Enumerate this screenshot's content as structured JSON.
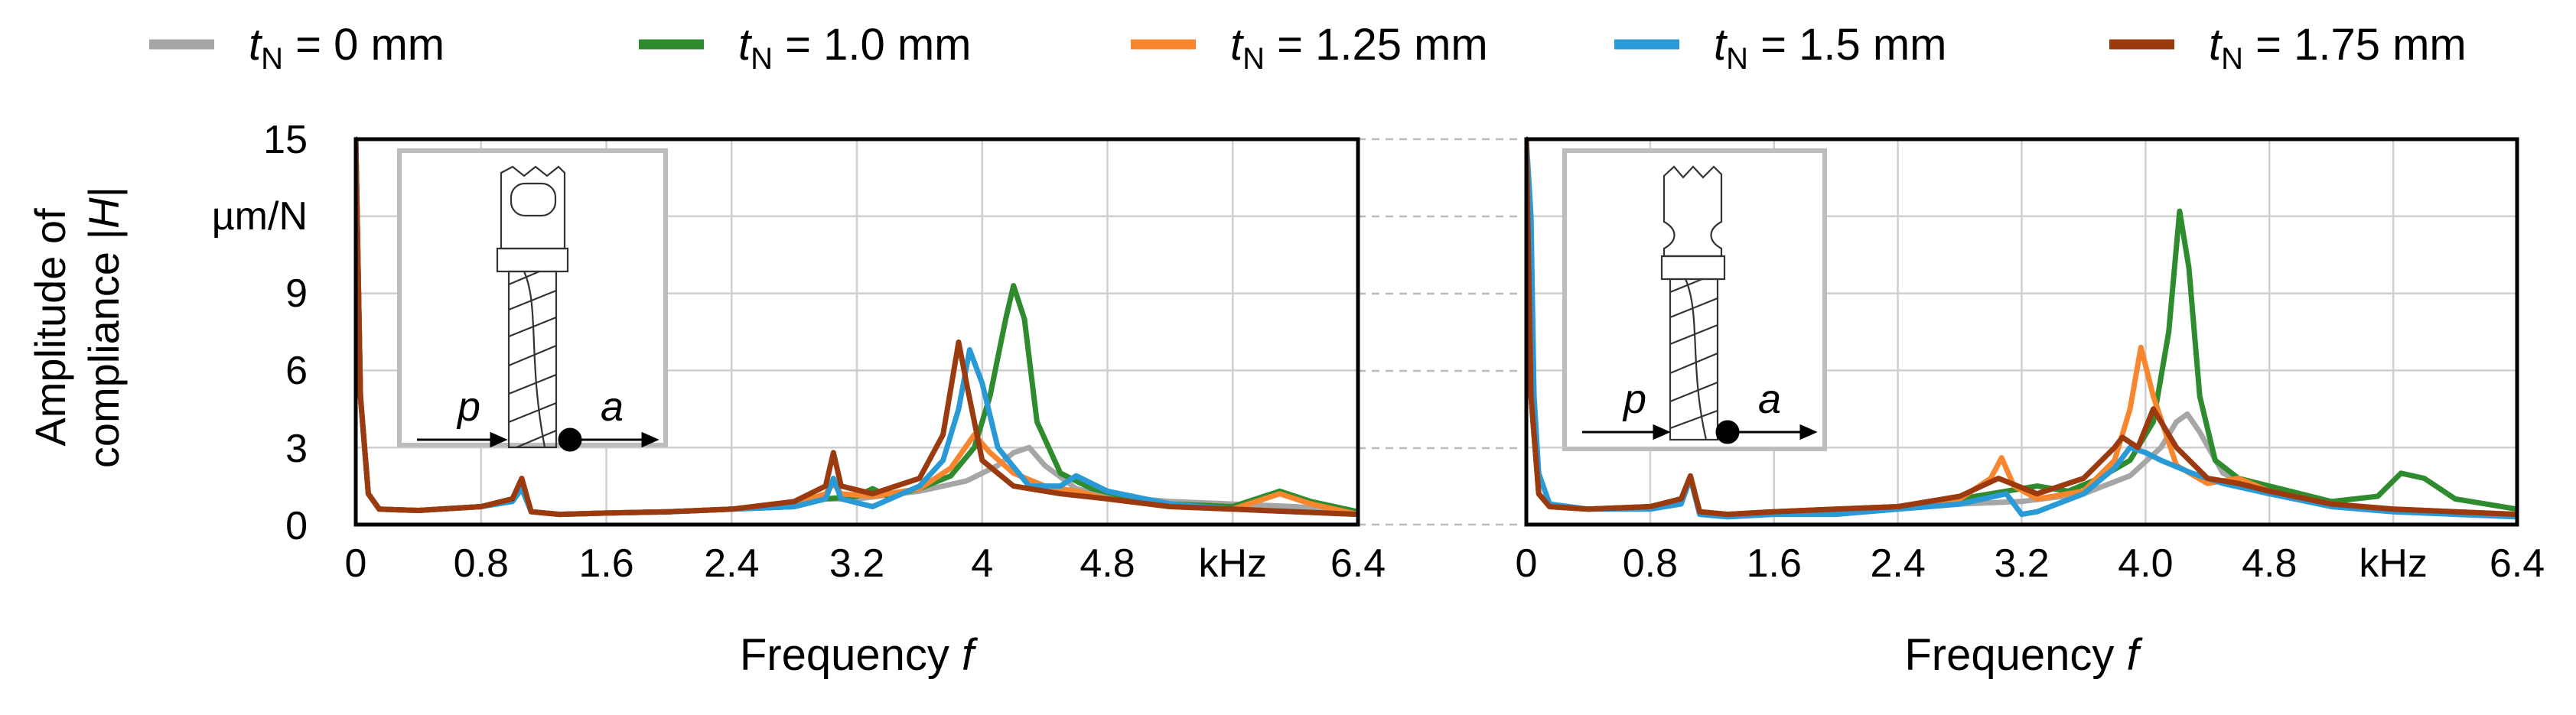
{
  "legend": {
    "items": [
      {
        "var": "t",
        "sub": "N",
        "rest": " = 0 mm",
        "color": "#a6a6a6"
      },
      {
        "var": "t",
        "sub": "N",
        "rest": " = 1.0 mm",
        "color": "#2e8b2e"
      },
      {
        "var": "t",
        "sub": "N",
        "rest": " = 1.25 mm",
        "color": "#f7862e"
      },
      {
        "var": "t",
        "sub": "N",
        "rest": " = 1.5 mm",
        "color": "#2a9ad6"
      },
      {
        "var": "t",
        "sub": "N",
        "rest": " = 1.75 mm",
        "color": "#9b3a0f"
      }
    ]
  },
  "y_axis": {
    "label_line1": "Amplitude of",
    "label_line2_prefix": "compliance |",
    "label_line2_var": "H",
    "label_line2_suffix": "|",
    "unit": "µm/N",
    "ticks": [
      "15",
      "",
      "9",
      "6",
      "3",
      "0"
    ]
  },
  "inset": {
    "left_labels": {
      "p": "p",
      "a": "a"
    },
    "right_labels": {
      "p": "p",
      "a": "a"
    }
  },
  "chart_data": [
    {
      "type": "line",
      "panel": "left",
      "xlabel_text": "Frequency ",
      "xlabel_var": "f",
      "x_unit": "kHz",
      "x_ticks": [
        "0",
        "0.8",
        "1.6",
        "2.4",
        "3.2",
        "4",
        "4.8",
        "",
        "6.4"
      ],
      "xlim": [
        0,
        6.4
      ],
      "ylim": [
        0,
        15
      ],
      "grid": true,
      "legend": "top",
      "series": [
        {
          "name": "tN = 0 mm",
          "color": "#a6a6a6",
          "x": [
            0,
            0.03,
            0.08,
            0.15,
            0.4,
            0.8,
            1.0,
            1.06,
            1.12,
            1.3,
            1.6,
            2.0,
            2.4,
            2.8,
            3.0,
            3.2,
            3.6,
            3.9,
            4.1,
            4.2,
            4.3,
            4.4,
            4.6,
            4.8,
            5.2,
            5.6,
            6.0,
            6.4
          ],
          "y": [
            15,
            5,
            1.2,
            0.6,
            0.55,
            0.7,
            0.9,
            1.5,
            0.5,
            0.4,
            0.45,
            0.5,
            0.6,
            0.7,
            1.0,
            1.0,
            1.3,
            1.7,
            2.3,
            2.8,
            3.0,
            2.3,
            1.4,
            1.1,
            0.9,
            0.8,
            0.7,
            0.5
          ]
        },
        {
          "name": "tN = 1.0 mm",
          "color": "#2e8b2e",
          "x": [
            0,
            0.03,
            0.08,
            0.15,
            0.4,
            0.8,
            1.0,
            1.06,
            1.12,
            1.3,
            1.6,
            2.0,
            2.4,
            2.8,
            3.0,
            3.2,
            3.3,
            3.4,
            3.6,
            3.8,
            3.95,
            4.05,
            4.15,
            4.2,
            4.27,
            4.35,
            4.5,
            4.7,
            4.9,
            5.2,
            5.6,
            5.9,
            6.1,
            6.4
          ],
          "y": [
            15,
            5,
            1.2,
            0.6,
            0.55,
            0.7,
            1.0,
            1.5,
            0.5,
            0.4,
            0.45,
            0.5,
            0.6,
            0.7,
            1.0,
            1.1,
            1.4,
            1.1,
            1.4,
            1.9,
            3.0,
            5.0,
            8.0,
            9.3,
            8.0,
            4.0,
            2.0,
            1.4,
            1.1,
            0.8,
            0.7,
            1.3,
            0.9,
            0.5
          ]
        },
        {
          "name": "tN = 1.25 mm",
          "color": "#f7862e",
          "x": [
            0,
            0.03,
            0.08,
            0.15,
            0.4,
            0.8,
            1.0,
            1.06,
            1.12,
            1.3,
            1.6,
            2.0,
            2.4,
            2.8,
            3.0,
            3.05,
            3.1,
            3.3,
            3.6,
            3.8,
            3.95,
            4.05,
            4.2,
            4.4,
            4.6,
            4.8,
            5.2,
            5.6,
            5.9,
            6.1,
            6.4
          ],
          "y": [
            15,
            5,
            1.2,
            0.6,
            0.55,
            0.7,
            1.0,
            1.7,
            0.5,
            0.4,
            0.45,
            0.5,
            0.6,
            0.8,
            1.2,
            1.6,
            1.2,
            1.1,
            1.4,
            2.2,
            3.5,
            2.8,
            2.0,
            1.5,
            1.3,
            1.0,
            0.7,
            0.6,
            1.2,
            0.8,
            0.4
          ]
        },
        {
          "name": "tN = 1.5 mm",
          "color": "#2a9ad6",
          "x": [
            0,
            0.03,
            0.08,
            0.15,
            0.4,
            0.8,
            1.0,
            1.06,
            1.12,
            1.3,
            1.6,
            2.0,
            2.4,
            2.8,
            3.0,
            3.05,
            3.1,
            3.3,
            3.6,
            3.75,
            3.85,
            3.92,
            4.0,
            4.1,
            4.3,
            4.5,
            4.6,
            4.8,
            5.2,
            5.6,
            6.0,
            6.4
          ],
          "y": [
            15,
            5,
            1.2,
            0.6,
            0.55,
            0.7,
            0.9,
            1.4,
            0.5,
            0.4,
            0.45,
            0.5,
            0.6,
            0.7,
            1.0,
            1.8,
            1.0,
            0.7,
            1.5,
            2.5,
            4.5,
            6.8,
            5.5,
            3.0,
            1.5,
            1.5,
            1.9,
            1.3,
            0.8,
            0.6,
            0.5,
            0.4
          ]
        },
        {
          "name": "tN = 1.75 mm",
          "color": "#9b3a0f",
          "x": [
            0,
            0.03,
            0.08,
            0.15,
            0.4,
            0.8,
            1.0,
            1.06,
            1.12,
            1.3,
            1.6,
            2.0,
            2.4,
            2.8,
            3.0,
            3.05,
            3.1,
            3.3,
            3.6,
            3.75,
            3.85,
            3.9,
            4.0,
            4.2,
            4.5,
            4.8,
            5.2,
            5.6,
            6.0,
            6.4
          ],
          "y": [
            15,
            5,
            1.2,
            0.6,
            0.55,
            0.7,
            1.0,
            1.8,
            0.5,
            0.4,
            0.45,
            0.5,
            0.6,
            0.9,
            1.5,
            2.8,
            1.5,
            1.2,
            1.8,
            3.5,
            7.1,
            5.5,
            2.5,
            1.5,
            1.2,
            1.0,
            0.7,
            0.6,
            0.5,
            0.4
          ]
        }
      ]
    },
    {
      "type": "line",
      "panel": "right",
      "xlabel_text": "Frequency ",
      "xlabel_var": "f",
      "x_unit": "kHz",
      "x_ticks": [
        "0",
        "0.8",
        "1.6",
        "2.4",
        "3.2",
        "4.0",
        "4.8",
        "",
        "6.4"
      ],
      "xlim": [
        0,
        6.4
      ],
      "ylim": [
        0,
        15
      ],
      "grid": true,
      "legend": "top",
      "series": [
        {
          "name": "tN = 0 mm",
          "color": "#a6a6a6",
          "x": [
            0,
            0.03,
            0.08,
            0.15,
            0.4,
            0.8,
            1.0,
            1.06,
            1.12,
            1.3,
            1.6,
            2.0,
            2.4,
            2.8,
            3.2,
            3.6,
            3.9,
            4.1,
            4.2,
            4.27,
            4.35,
            4.5,
            4.8,
            5.2,
            5.6,
            6.0,
            6.4
          ],
          "y": [
            15,
            5,
            1.2,
            0.7,
            0.6,
            0.7,
            0.9,
            1.8,
            0.5,
            0.4,
            0.45,
            0.55,
            0.6,
            0.8,
            0.9,
            1.2,
            1.9,
            3.0,
            4.0,
            4.3,
            3.6,
            2.0,
            1.2,
            0.8,
            0.6,
            0.5,
            0.4
          ]
        },
        {
          "name": "tN = 1.0 mm",
          "color": "#2e8b2e",
          "x": [
            0,
            0.03,
            0.08,
            0.15,
            0.4,
            0.8,
            1.0,
            1.06,
            1.12,
            1.3,
            1.6,
            2.0,
            2.4,
            2.8,
            3.0,
            3.3,
            3.5,
            3.7,
            3.9,
            4.05,
            4.15,
            4.22,
            4.28,
            4.35,
            4.45,
            4.6,
            4.8,
            5.2,
            5.5,
            5.65,
            5.8,
            6.0,
            6.4
          ],
          "y": [
            15,
            5,
            1.2,
            0.7,
            0.6,
            0.7,
            1.0,
            1.8,
            0.5,
            0.4,
            0.5,
            0.6,
            0.7,
            1.0,
            1.2,
            1.5,
            1.3,
            1.8,
            2.5,
            4.0,
            7.5,
            12.2,
            10.0,
            5.0,
            2.5,
            1.8,
            1.5,
            0.9,
            1.1,
            2.0,
            1.8,
            1.0,
            0.6
          ]
        },
        {
          "name": "tN = 1.25 mm",
          "color": "#f7862e",
          "x": [
            0,
            0.03,
            0.08,
            0.15,
            0.4,
            0.8,
            1.0,
            1.06,
            1.12,
            1.3,
            1.6,
            2.0,
            2.4,
            2.8,
            3.0,
            3.07,
            3.15,
            3.3,
            3.6,
            3.8,
            3.9,
            3.97,
            4.05,
            4.2,
            4.4,
            4.6,
            4.8,
            5.2,
            5.6,
            6.0,
            6.4
          ],
          "y": [
            15,
            5,
            1.2,
            0.7,
            0.6,
            0.7,
            1.0,
            1.8,
            0.5,
            0.4,
            0.5,
            0.6,
            0.7,
            1.0,
            1.8,
            2.6,
            1.5,
            1.0,
            1.3,
            2.5,
            4.5,
            6.9,
            5.0,
            2.3,
            1.6,
            1.8,
            1.3,
            0.8,
            0.6,
            0.5,
            0.4
          ]
        },
        {
          "name": "tN = 1.5 mm",
          "color": "#2a9ad6",
          "x": [
            0,
            0.03,
            0.05,
            0.08,
            0.15,
            0.4,
            0.8,
            1.0,
            1.06,
            1.12,
            1.3,
            1.6,
            2.0,
            2.4,
            2.8,
            3.1,
            3.2,
            3.3,
            3.6,
            3.8,
            3.9,
            4.0,
            4.1,
            4.3,
            4.5,
            4.8,
            5.2,
            5.6,
            6.0,
            6.4
          ],
          "y": [
            15,
            12,
            5,
            2,
            0.8,
            0.6,
            0.6,
            0.8,
            1.8,
            0.4,
            0.3,
            0.4,
            0.4,
            0.6,
            0.8,
            1.2,
            0.4,
            0.5,
            1.2,
            2.2,
            3.0,
            2.8,
            2.5,
            2.0,
            1.6,
            1.2,
            0.7,
            0.5,
            0.4,
            0.3
          ]
        },
        {
          "name": "tN = 1.75 mm",
          "color": "#9b3a0f",
          "x": [
            0,
            0.03,
            0.08,
            0.15,
            0.4,
            0.8,
            1.0,
            1.06,
            1.12,
            1.3,
            1.6,
            2.0,
            2.4,
            2.8,
            3.05,
            3.3,
            3.6,
            3.8,
            3.85,
            3.95,
            4.05,
            4.1,
            4.2,
            4.4,
            4.6,
            4.8,
            5.2,
            5.6,
            6.0,
            6.4
          ],
          "y": [
            15,
            5,
            1.2,
            0.7,
            0.6,
            0.7,
            1.0,
            1.9,
            0.5,
            0.4,
            0.5,
            0.6,
            0.7,
            1.1,
            1.8,
            1.2,
            1.8,
            3.0,
            3.4,
            3.0,
            4.5,
            4.0,
            3.0,
            1.8,
            1.6,
            1.3,
            0.8,
            0.6,
            0.5,
            0.4
          ]
        }
      ]
    }
  ]
}
